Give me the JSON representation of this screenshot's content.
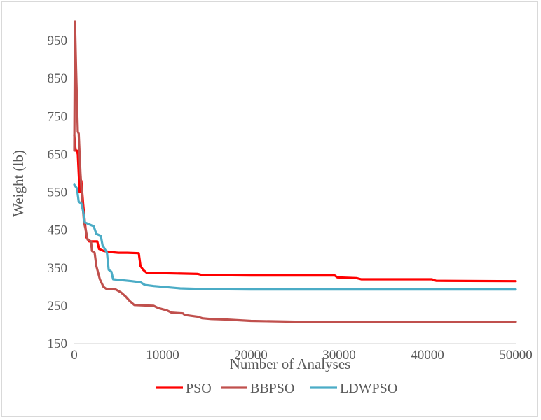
{
  "chart_data": {
    "type": "line",
    "title": "",
    "xlabel": "Number of Analyses",
    "ylabel": "Weight (lb)",
    "xlim": [
      0,
      50000
    ],
    "ylim": [
      150,
      1000
    ],
    "x_ticks": [
      "0",
      "10000",
      "20000",
      "30000",
      "40000",
      "50000"
    ],
    "y_ticks": [
      "150",
      "250",
      "350",
      "450",
      "550",
      "650",
      "750",
      "850",
      "950"
    ],
    "grid": false,
    "legend_position": "bottom",
    "series": [
      {
        "name": "PSO",
        "color": "#ff0000",
        "points": [
          [
            0,
            700
          ],
          [
            150,
            660
          ],
          [
            300,
            660
          ],
          [
            400,
            650
          ],
          [
            600,
            550
          ],
          [
            800,
            580
          ],
          [
            1000,
            520
          ],
          [
            1200,
            470
          ],
          [
            1400,
            430
          ],
          [
            1700,
            420
          ],
          [
            2000,
            420
          ],
          [
            2600,
            420
          ],
          [
            2800,
            400
          ],
          [
            3300,
            395
          ],
          [
            4000,
            392
          ],
          [
            5000,
            390
          ],
          [
            6000,
            390
          ],
          [
            7300,
            389
          ],
          [
            7500,
            355
          ],
          [
            7800,
            345
          ],
          [
            8200,
            337
          ],
          [
            10000,
            336
          ],
          [
            14000,
            334
          ],
          [
            14500,
            331
          ],
          [
            20000,
            330
          ],
          [
            25000,
            330
          ],
          [
            29500,
            330
          ],
          [
            29800,
            325
          ],
          [
            32000,
            323
          ],
          [
            32500,
            320
          ],
          [
            40500,
            320
          ],
          [
            41000,
            316
          ],
          [
            50000,
            315
          ]
        ]
      },
      {
        "name": "BBPSO",
        "color": "#c0504d",
        "points": [
          [
            0,
            660
          ],
          [
            80,
            1000
          ],
          [
            200,
            880
          ],
          [
            400,
            710
          ],
          [
            500,
            705
          ],
          [
            700,
            600
          ],
          [
            900,
            530
          ],
          [
            1100,
            470
          ],
          [
            1300,
            450
          ],
          [
            1500,
            425
          ],
          [
            1900,
            420
          ],
          [
            2000,
            395
          ],
          [
            2300,
            390
          ],
          [
            2500,
            355
          ],
          [
            2900,
            320
          ],
          [
            3300,
            300
          ],
          [
            3600,
            295
          ],
          [
            4700,
            293
          ],
          [
            5300,
            285
          ],
          [
            5800,
            275
          ],
          [
            6300,
            262
          ],
          [
            6800,
            252
          ],
          [
            9000,
            250
          ],
          [
            9500,
            244
          ],
          [
            10500,
            238
          ],
          [
            11000,
            232
          ],
          [
            12300,
            230
          ],
          [
            12500,
            226
          ],
          [
            14000,
            221
          ],
          [
            14500,
            217
          ],
          [
            15500,
            215
          ],
          [
            17000,
            214
          ],
          [
            20000,
            210
          ],
          [
            25000,
            208
          ],
          [
            30000,
            208
          ],
          [
            40000,
            208
          ],
          [
            50000,
            208
          ]
        ]
      },
      {
        "name": "LDWPSO",
        "color": "#4bacc6",
        "points": [
          [
            0,
            570
          ],
          [
            300,
            560
          ],
          [
            500,
            525
          ],
          [
            800,
            520
          ],
          [
            1000,
            500
          ],
          [
            1200,
            470
          ],
          [
            2200,
            460
          ],
          [
            2500,
            440
          ],
          [
            3000,
            435
          ],
          [
            3200,
            410
          ],
          [
            3700,
            390
          ],
          [
            3900,
            345
          ],
          [
            4200,
            340
          ],
          [
            4400,
            320
          ],
          [
            6500,
            315
          ],
          [
            7500,
            312
          ],
          [
            8000,
            305
          ],
          [
            9000,
            302
          ],
          [
            12000,
            296
          ],
          [
            15000,
            294
          ],
          [
            20000,
            293
          ],
          [
            30000,
            293
          ],
          [
            40000,
            293
          ],
          [
            50000,
            293
          ]
        ]
      }
    ]
  }
}
